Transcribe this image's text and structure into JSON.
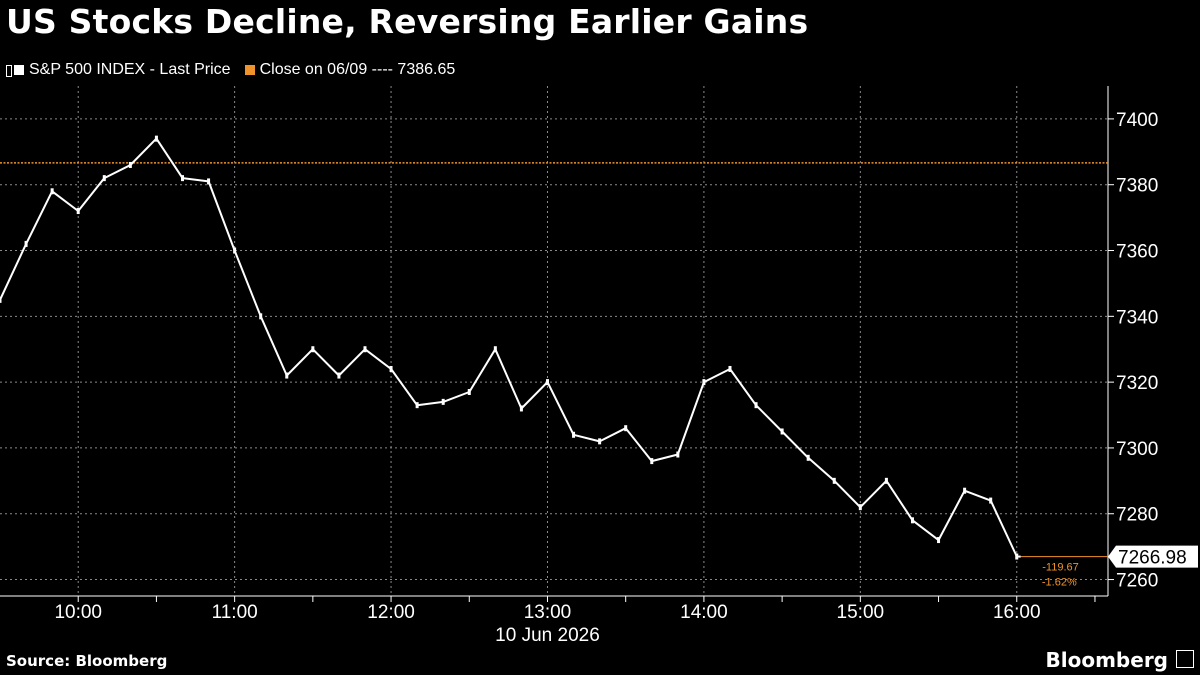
{
  "title": "US Stocks Decline, Reversing Earlier Gains",
  "legend": {
    "series_label": "S&P 500 INDEX - Last Price",
    "reference_label": "Close on 06/09 ---- 7386.65"
  },
  "footer": {
    "source": "Source: Bloomberg",
    "brand": "Bloomberg"
  },
  "colors": {
    "background": "#000000",
    "series": "#ffffff",
    "reference": "#f0932b",
    "grid": "#8a8a8a"
  },
  "chart_data": {
    "type": "line",
    "series": [
      {
        "name": "S&P 500 INDEX - Last Price",
        "x": [
          "09:30",
          "09:40",
          "09:50",
          "10:00",
          "10:10",
          "10:20",
          "10:30",
          "10:40",
          "10:50",
          "11:00",
          "11:10",
          "11:20",
          "11:30",
          "11:40",
          "11:50",
          "12:00",
          "12:10",
          "12:20",
          "12:30",
          "12:40",
          "12:50",
          "13:00",
          "13:10",
          "13:20",
          "13:30",
          "13:40",
          "13:50",
          "14:00",
          "14:10",
          "14:20",
          "14:30",
          "14:40",
          "14:50",
          "15:00",
          "15:10",
          "15:20",
          "15:30",
          "15:40",
          "15:50",
          "16:00"
        ],
        "y": [
          7345,
          7362,
          7378,
          7372,
          7382,
          7386,
          7394,
          7382,
          7381,
          7360,
          7340,
          7322,
          7330,
          7322,
          7330,
          7324,
          7313,
          7314,
          7317,
          7330,
          7312,
          7320,
          7304,
          7302,
          7306,
          7296,
          7298,
          7320,
          7324,
          7313,
          7305,
          7297,
          7290,
          7282,
          7290,
          7278,
          7272,
          7287,
          7284,
          7267
        ]
      }
    ],
    "reference_line": {
      "label": "Close on 06/09",
      "value": 7386.65
    },
    "last_value": "7266.98",
    "change_abs": "-119.67",
    "change_pct": "-1.62%",
    "x_ticks": [
      "10:00",
      "11:00",
      "12:00",
      "13:00",
      "14:00",
      "15:00",
      "16:00"
    ],
    "x_date_label": "10 Jun 2026",
    "y_ticks": [
      7260,
      7280,
      7300,
      7320,
      7340,
      7360,
      7380,
      7400
    ],
    "ylim": [
      7255,
      7410
    ],
    "xlim": [
      "09:30",
      "16:35"
    ],
    "grid": true,
    "y_axis_side": "right"
  }
}
